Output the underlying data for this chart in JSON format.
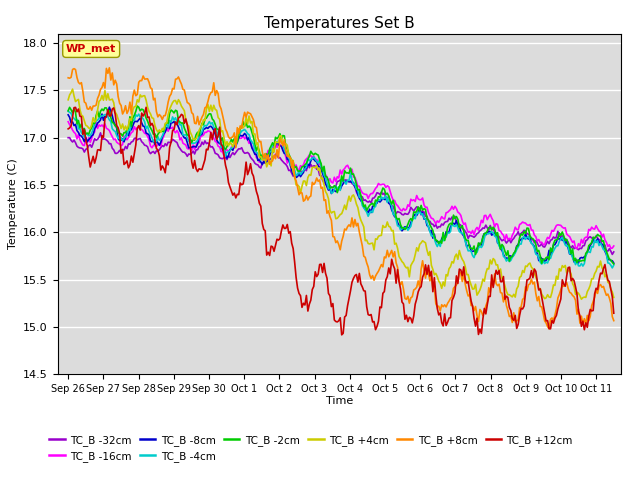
{
  "title": "Temperatures Set B",
  "xlabel": "Time",
  "ylabel": "Temperature (C)",
  "ylim": [
    14.5,
    18.1
  ],
  "background_color": "#dcdcdc",
  "wp_met_box_color": "#ffff99",
  "wp_met_text_color": "#cc0000",
  "series": [
    {
      "label": "TC_B -32cm",
      "color": "#9900cc"
    },
    {
      "label": "TC_B -16cm",
      "color": "#ff00ff"
    },
    {
      "label": "TC_B -8cm",
      "color": "#0000cc"
    },
    {
      "label": "TC_B -4cm",
      "color": "#00cccc"
    },
    {
      "label": "TC_B -2cm",
      "color": "#00cc00"
    },
    {
      "label": "TC_B +4cm",
      "color": "#cccc00"
    },
    {
      "label": "TC_B +8cm",
      "color": "#ff8800"
    },
    {
      "label": "TC_B +12cm",
      "color": "#cc0000"
    }
  ],
  "x_tick_labels": [
    "Sep 26",
    "Sep 27",
    "Sep 28",
    "Sep 29",
    "Sep 30",
    "Oct 1",
    "Oct 2",
    "Oct 3",
    "Oct 4",
    "Oct 5",
    "Oct 6",
    "Oct 7",
    "Oct 8",
    "Oct 9",
    "Oct 10",
    "Oct 11"
  ],
  "yticks": [
    14.5,
    15.0,
    15.5,
    16.0,
    16.5,
    17.0,
    17.5,
    18.0
  ]
}
